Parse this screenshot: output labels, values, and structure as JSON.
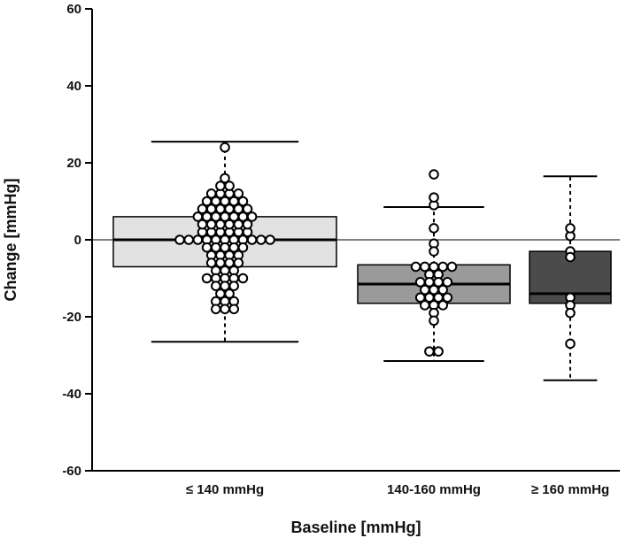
{
  "chart_data": {
    "type": "box",
    "title": "",
    "xlabel": "Baseline [mmHg]",
    "ylabel": "Change [mmHg]",
    "ylim": [
      -60,
      60
    ],
    "yticks": [
      60,
      40,
      20,
      0,
      -20,
      -40,
      -60
    ],
    "categories": [
      "≤ 140 mmHg",
      "140-160 mmHg",
      "≥ 160 mmHg"
    ],
    "reference_line": 0,
    "boxes": [
      {
        "category": "≤ 140 mmHg",
        "whisker_low": -26.5,
        "q1": -7,
        "median": 0,
        "q3": 6,
        "whisker_high": 25.5,
        "fill": "#e2e2e2",
        "points": [
          24,
          16,
          14,
          14,
          12,
          12,
          12,
          12,
          10,
          10,
          10,
          10,
          10,
          8,
          8,
          8,
          8,
          8,
          8,
          6,
          6,
          6,
          6,
          6,
          6,
          6,
          4,
          4,
          4,
          4,
          4,
          4,
          2,
          2,
          2,
          2,
          2,
          2,
          0,
          0,
          0,
          0,
          0,
          0,
          0,
          0,
          0,
          0,
          0,
          -2,
          -2,
          -2,
          -2,
          -2,
          -4,
          -4,
          -4,
          -4,
          -6,
          -6,
          -6,
          -6,
          -8,
          -8,
          -8,
          -10,
          -10,
          -10,
          -10,
          -10,
          -12,
          -12,
          -12,
          -14,
          -14,
          -16,
          -16,
          -16,
          -18,
          -18,
          -18
        ]
      },
      {
        "category": "140-160 mmHg",
        "whisker_low": -31.5,
        "q1": -16.5,
        "median": -11.5,
        "q3": -6.5,
        "whisker_high": 8.5,
        "fill": "#9a9a9a",
        "points": [
          17,
          11,
          9,
          3,
          -1,
          -3,
          -7,
          -7,
          -7,
          -7,
          -7,
          -9,
          -9,
          -11,
          -11,
          -11,
          -11,
          -13,
          -13,
          -13,
          -15,
          -15,
          -15,
          -15,
          -17,
          -17,
          -17,
          -19,
          -21,
          -29,
          -29
        ]
      },
      {
        "category": "≥ 160 mmHg",
        "whisker_low": -36.5,
        "q1": -16.5,
        "median": -14,
        "q3": -3,
        "whisker_high": 16.5,
        "fill": "#4b4b4b",
        "points": [
          3,
          1,
          -3,
          -4.5,
          -15,
          -17,
          -19,
          -27
        ]
      }
    ]
  }
}
